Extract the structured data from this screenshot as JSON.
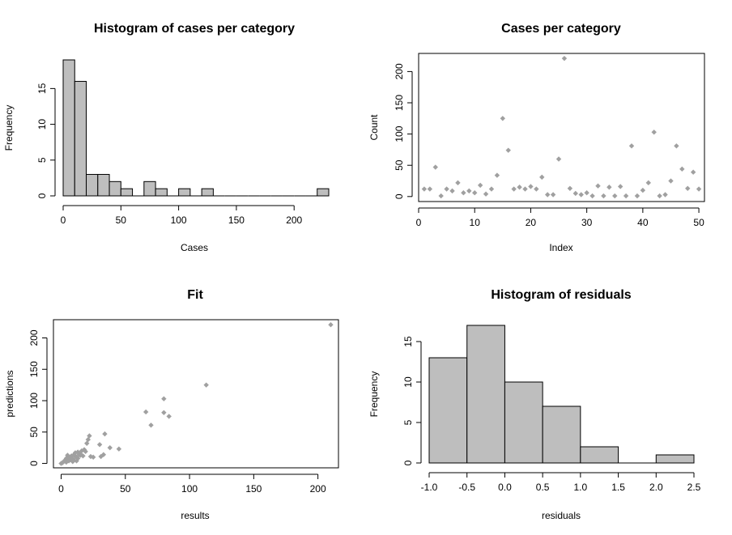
{
  "colors": {
    "bar_fill": "#bebebe",
    "point_fill": "#a0a0a0",
    "axis": "#000000"
  },
  "chart_data": [
    {
      "id": "hist-cases",
      "type": "bar",
      "title": "Histogram of cases per category",
      "xlabel": "Cases",
      "ylabel": "Frequency",
      "bin_width": 10,
      "bin_starts": [
        0,
        10,
        20,
        30,
        40,
        50,
        60,
        70,
        80,
        90,
        100,
        110,
        120,
        130,
        140,
        150,
        160,
        170,
        180,
        190,
        200,
        210,
        220
      ],
      "values": [
        19,
        16,
        3,
        3,
        2,
        1,
        0,
        2,
        1,
        0,
        1,
        0,
        1,
        0,
        0,
        0,
        0,
        0,
        0,
        0,
        0,
        0,
        1
      ],
      "xlim": [
        0,
        230
      ],
      "ylim": [
        0,
        19
      ],
      "xticks": [
        0,
        50,
        100,
        150,
        200
      ],
      "yticks": [
        0,
        5,
        10,
        15
      ]
    },
    {
      "id": "scatter-cases",
      "type": "scatter",
      "title": "Cases per category",
      "xlabel": "Index",
      "ylabel": "Count",
      "x": [
        1,
        2,
        3,
        4,
        5,
        6,
        7,
        8,
        9,
        10,
        11,
        12,
        13,
        14,
        15,
        16,
        17,
        18,
        19,
        20,
        21,
        22,
        23,
        24,
        25,
        26,
        27,
        28,
        29,
        30,
        31,
        32,
        33,
        34,
        35,
        36,
        37,
        38,
        39,
        40,
        41,
        42,
        43,
        44,
        45,
        46,
        47,
        48,
        49,
        50
      ],
      "y": [
        12,
        12,
        47,
        1,
        12,
        9,
        22,
        6,
        9,
        6,
        18,
        4,
        12,
        34,
        125,
        74,
        12,
        15,
        12,
        16,
        12,
        31,
        3,
        3,
        60,
        221,
        13,
        5,
        3,
        6,
        1,
        17,
        1,
        15,
        1,
        16,
        1,
        81,
        1,
        10,
        22,
        103,
        1,
        3,
        25,
        81,
        44,
        13,
        39,
        12
      ],
      "xlim": [
        0,
        51
      ],
      "ylim": [
        -8,
        229
      ],
      "xticks": [
        0,
        10,
        20,
        30,
        40,
        50
      ],
      "yticks": [
        0,
        50,
        100,
        150,
        200
      ]
    },
    {
      "id": "fit",
      "type": "scatter",
      "title": "Fit",
      "xlabel": "results",
      "ylabel": "predictions",
      "x": [
        0,
        1,
        2,
        3,
        4,
        4,
        5,
        5,
        6,
        6,
        7,
        8,
        8,
        9,
        9,
        10,
        10,
        11,
        11,
        12,
        12,
        13,
        13,
        14,
        15,
        15,
        16,
        17,
        18,
        19,
        20,
        21,
        22,
        23,
        25,
        30,
        31,
        33,
        34,
        38,
        45,
        66,
        70,
        80,
        80,
        84,
        113,
        210
      ],
      "y": [
        0,
        1,
        3,
        5,
        2,
        8,
        13,
        7,
        4,
        10,
        6,
        9,
        12,
        3,
        6,
        14,
        5,
        11,
        17,
        4,
        10,
        18,
        8,
        14,
        15,
        13,
        20,
        12,
        22,
        19,
        32,
        38,
        44,
        11,
        10,
        30,
        11,
        14,
        47,
        25,
        23,
        82,
        61,
        103,
        81,
        75,
        125,
        221
      ],
      "xlim": [
        -6,
        216
      ],
      "ylim": [
        -7,
        229
      ],
      "xticks": [
        0,
        50,
        100,
        150,
        200
      ],
      "yticks": [
        0,
        50,
        100,
        150,
        200
      ]
    },
    {
      "id": "hist-residuals",
      "type": "bar",
      "title": "Histogram of residuals",
      "xlabel": "residuals",
      "ylabel": "Frequency",
      "bin_width": 0.5,
      "bin_starts": [
        -1.0,
        -0.5,
        0.0,
        0.5,
        1.0,
        1.5,
        2.0
      ],
      "values": [
        13,
        17,
        10,
        7,
        2,
        0,
        1
      ],
      "xlim": [
        -1.0,
        2.5
      ],
      "ylim": [
        0,
        17
      ],
      "xticks": [
        -1.0,
        -0.5,
        0.0,
        0.5,
        1.0,
        1.5,
        2.0,
        2.5
      ],
      "xtick_labels": [
        "-1.0",
        "-0.5",
        "0.0",
        "0.5",
        "1.0",
        "1.5",
        "2.0",
        "2.5"
      ],
      "yticks": [
        0,
        5,
        10,
        15
      ]
    }
  ]
}
